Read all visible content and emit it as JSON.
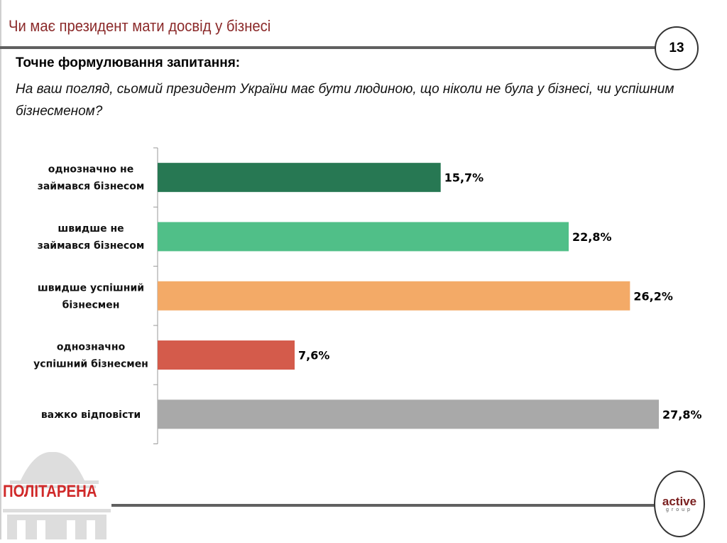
{
  "slide": {
    "title": "Чи має президент мати досвід у бізнесі",
    "page_number": "13",
    "question_heading": "Точне формулювання запитання:",
    "question_text": "На ваш погляд, сьомий президент України має бути людиною, що ніколи не була у бізнесі, чи успішним бізнесменом?"
  },
  "logos": {
    "left": "ПОЛІТАРЕНА",
    "right_main": "active",
    "right_sub": "group"
  },
  "chart_data": {
    "type": "bar",
    "orientation": "horizontal",
    "categories": [
      [
        "однозначно не",
        "займався бізнесом"
      ],
      [
        "швидше не",
        "займався бізнесом"
      ],
      [
        "швидше успішний",
        "бізнесмен"
      ],
      [
        "однозначно",
        "успішний бізнесмен"
      ],
      [
        "важко відповісти"
      ]
    ],
    "values": [
      15.7,
      22.8,
      26.2,
      7.6,
      27.8
    ],
    "labels": [
      "15,7%",
      "22,8%",
      "26,2%",
      "7,6%",
      "27,8%"
    ],
    "colors": [
      "#277853",
      "#50bf88",
      "#f3aa67",
      "#d45b4b",
      "#a9a9a9"
    ],
    "unit": "%",
    "grid": false,
    "legend": "none"
  }
}
